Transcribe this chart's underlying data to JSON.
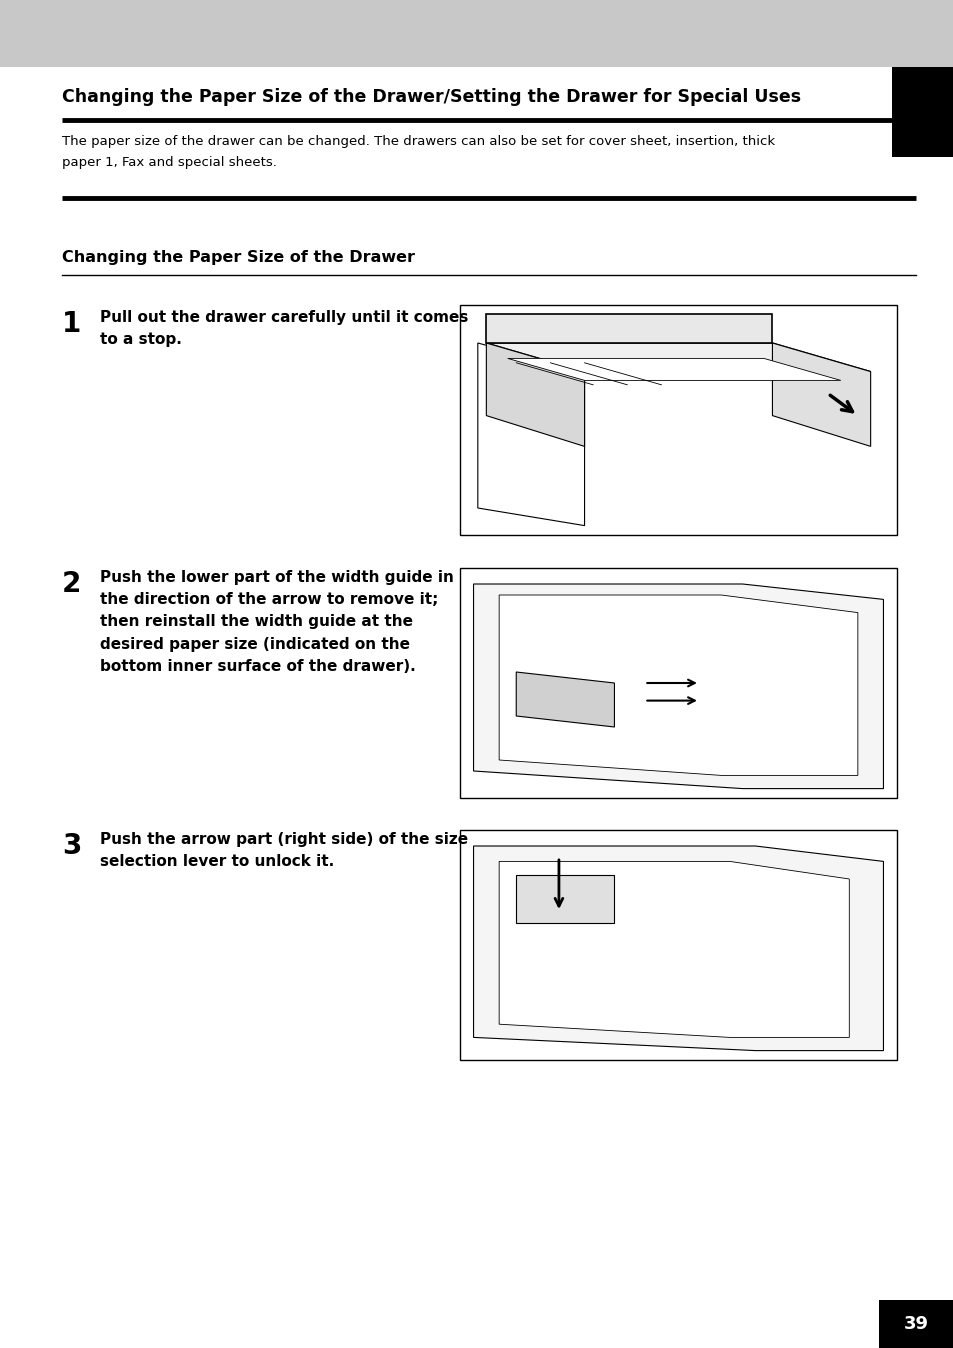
{
  "page_bg": "#ffffff",
  "header_bg": "#c8c8c8",
  "main_title": "Changing the Paper Size of the Drawer/Setting the Drawer for Special Uses",
  "main_title_fontsize": 12.5,
  "description": "The paper size of the drawer can be changed. The drawers can also be set for cover sheet, insertion, thick\npaper 1, Fax and special sheets.",
  "description_fontsize": 9.5,
  "section_title": "Changing the Paper Size of the Drawer",
  "section_title_fontsize": 11.5,
  "step1_number": "1",
  "step1_text": "Pull out the drawer carefully until it comes\nto a stop.",
  "step2_number": "2",
  "step2_text": "Push the lower part of the width guide in\nthe direction of the arrow to remove it;\nthen reinstall the width guide at the\ndesired paper size (indicated on the\nbottom inner surface of the drawer).",
  "step3_number": "3",
  "step3_text": "Push the arrow part (right side) of the size\nselection lever to unlock it.",
  "step_fontsize": 11.0,
  "step_num_fontsize": 20,
  "page_number": "39",
  "tab_color": "#000000",
  "tab_text_color": "#ffffff",
  "black_rule_color": "#000000",
  "image_border_color": "#000000",
  "lm": 0.065,
  "rm": 0.96
}
